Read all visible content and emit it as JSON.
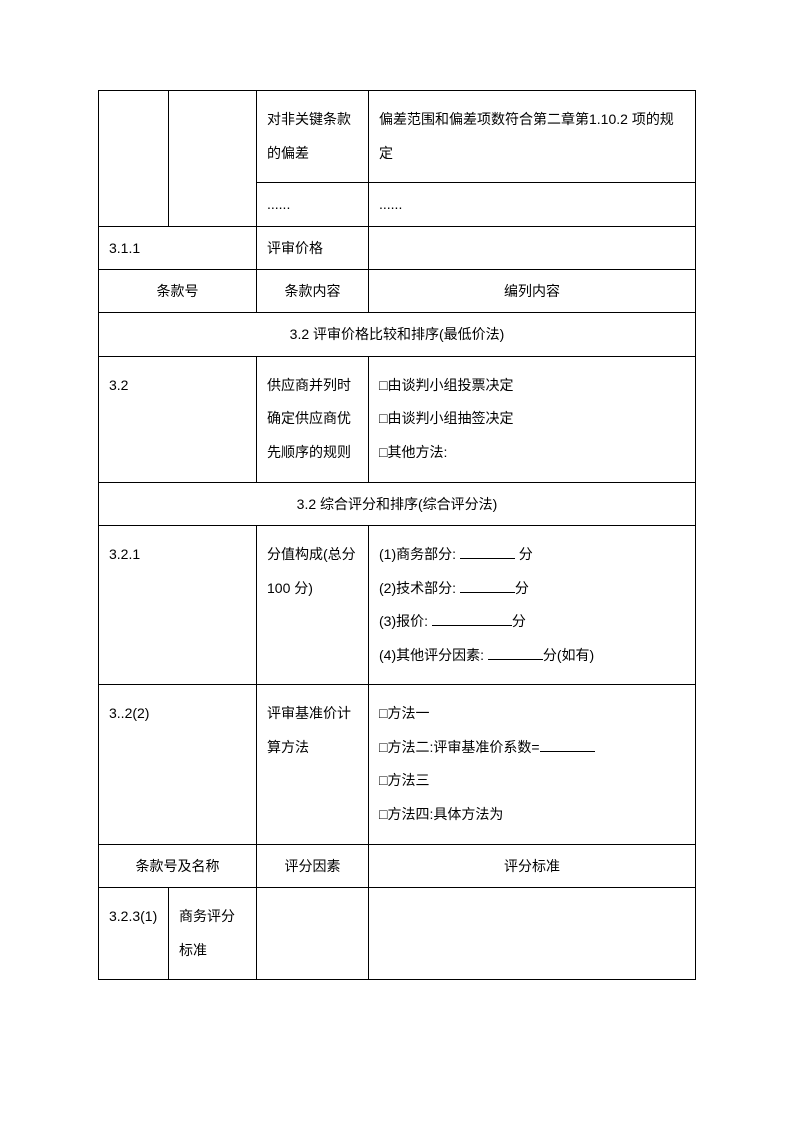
{
  "r1": {
    "c3": "对非关键条款的偏差",
    "c4": "偏差范围和偏差项数符合第二章第1.10.2 项的规定"
  },
  "r2": {
    "c3": "......",
    "c4": "......"
  },
  "r3": {
    "c1": "3.1.1",
    "c3": "评审价格"
  },
  "r4": {
    "c1": "条款号",
    "c2": "条款内容",
    "c3": "编列内容"
  },
  "r5": {
    "title": "3.2 评审价格比较和排序(最低价法)"
  },
  "r6": {
    "c1": "3.2",
    "c3": "供应商并列时确定供应商优先顺序的规则",
    "c4_line1": "□由谈判小组投票决定",
    "c4_line2": "□由谈判小组抽签决定",
    "c4_line3": "□其他方法:"
  },
  "r7": {
    "title": "3.2  综合评分和排序(综合评分法)"
  },
  "r8": {
    "c1": "3.2.1",
    "c3": "分值构成(总分 100 分)",
    "c4_l1a": "(1)商务部分:",
    "c4_l1b": "分",
    "c4_l2a": "(2)技术部分:",
    "c4_l2b": "分",
    "c4_l3a": "(3)报价:",
    "c4_l3b": "分",
    "c4_l4a": "(4)其他评分因素:",
    "c4_l4b": "分(如有)"
  },
  "r9": {
    "c1": "3..2(2)",
    "c3": "评审基准价计算方法",
    "c4_l1": "□方法一",
    "c4_l2a": "□方法二:评审基准价系数=",
    "c4_l3": "□方法三",
    "c4_l4": "□方法四:具体方法为"
  },
  "r10": {
    "c1": "条款号及名称",
    "c2": "评分因素",
    "c3": "评分标准"
  },
  "r11": {
    "c1": "3.2.3(1)",
    "c2": "商务评分标准"
  }
}
